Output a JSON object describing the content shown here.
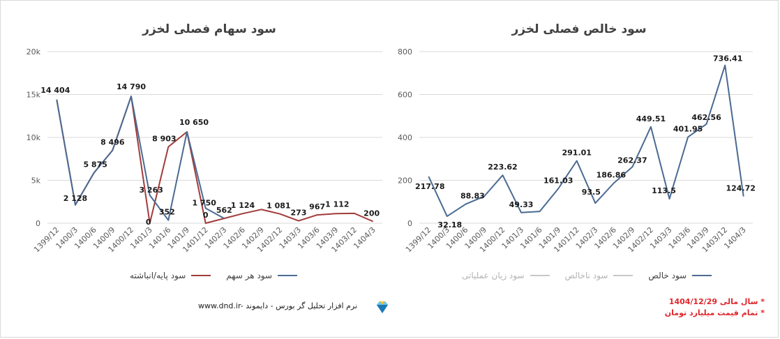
{
  "left_chart": {
    "title": "سود سهام فصلی لخزر",
    "legend": [
      {
        "label": "سود هر سهم",
        "color": "#4a6a92"
      },
      {
        "label": "سود پایه/انباشته",
        "color": "#a23b3b"
      }
    ]
  },
  "right_chart": {
    "title": "سود خالص فصلی لخزر",
    "legend": [
      {
        "label": "سود خالص",
        "color": "#4a6a92"
      },
      {
        "label": "سود ناخالص",
        "color": "#c7c7c7"
      },
      {
        "label": "سود زیان عملیاتی",
        "color": "#c7c7c7"
      }
    ]
  },
  "footer": {
    "text": "www.dnd.ir- نرم افزار تحلیل گر بورس - دایموند"
  },
  "notes": {
    "line1": "* سال مالی 1404/12/29",
    "line2": "* تمام قیمت میلیارد تومان"
  },
  "chart_data": [
    {
      "type": "line",
      "title": "سود سهام فصلی لخزر",
      "categories": [
        "1399/12",
        "1400/3",
        "1400/6",
        "1400/9",
        "1400/12",
        "1401/3",
        "1401/6",
        "1401/9",
        "1401/12",
        "1402/3",
        "1402/6",
        "1402/9",
        "1402/12",
        "1403/3",
        "1403/6",
        "1403/9",
        "1403/12",
        "1404/3"
      ],
      "ylim": [
        0,
        20000
      ],
      "yticks": [
        0,
        5000,
        10000,
        15000,
        20000
      ],
      "ytick_labels": [
        "0",
        "5k",
        "10k",
        "15k",
        "20k"
      ],
      "grid": true,
      "legend_position": "bottom",
      "series": [
        {
          "name": "سود هر سهم",
          "color": "#4a6a92",
          "values": [
            14404,
            2128,
            5875,
            8496,
            14790,
            3263,
            352,
            10650,
            1750,
            562,
            null,
            null,
            null,
            null,
            null,
            null,
            null,
            null
          ]
        },
        {
          "name": "سود پایه/انباشته",
          "color": "#a23b3b",
          "values": [
            14404,
            2128,
            5875,
            8496,
            14790,
            0,
            8903,
            10650,
            0,
            562,
            1124,
            1600,
            1081,
            273,
            967,
            1112,
            1150,
            200
          ]
        }
      ],
      "data_labels": [
        {
          "index": 0,
          "text": "14 404",
          "value": 14404
        },
        {
          "index": 1,
          "text": "2 128",
          "value": 2128
        },
        {
          "index": 2,
          "text": "5 875",
          "value": 5875
        },
        {
          "index": 3,
          "text": "8 496",
          "value": 8496
        },
        {
          "index": 4,
          "text": "14 790",
          "value": 14790
        },
        {
          "index": 5,
          "text": "3 263",
          "value": 3263
        },
        {
          "index": 5,
          "text": "0",
          "value": 0
        },
        {
          "index": 6,
          "text": "352",
          "value": 352
        },
        {
          "index": 6,
          "text": "8 903",
          "value": 8903
        },
        {
          "index": 7,
          "text": "10 650",
          "value": 10650
        },
        {
          "index": 8,
          "text": "1 750",
          "value": 1750
        },
        {
          "index": 8,
          "text": "0",
          "value": 0
        },
        {
          "index": 9,
          "text": "562",
          "value": 562
        },
        {
          "index": 10,
          "text": "1 124",
          "value": 1124
        },
        {
          "index": 12,
          "text": "1 081",
          "value": 1081
        },
        {
          "index": 13,
          "text": "273",
          "value": 273
        },
        {
          "index": 14,
          "text": "967",
          "value": 967
        },
        {
          "index": 15,
          "text": "1 112",
          "value": 1112
        },
        {
          "index": 17,
          "text": "200",
          "value": 200
        }
      ]
    },
    {
      "type": "line",
      "title": "سود خالص فصلی لخزر",
      "categories": [
        "1399/12",
        "1400/3",
        "1400/6",
        "1400/9",
        "1400/12",
        "1401/3",
        "1401/6",
        "1401/9",
        "1401/12",
        "1402/3",
        "1402/6",
        "1402/9",
        "1402/12",
        "1403/3",
        "1403/6",
        "1403/9",
        "1403/12",
        "1404/3"
      ],
      "ylim": [
        0,
        800
      ],
      "yticks": [
        0,
        200,
        400,
        600,
        800
      ],
      "ytick_labels": [
        "0",
        "200",
        "400",
        "600",
        "800"
      ],
      "grid": true,
      "legend_position": "bottom",
      "series": [
        {
          "name": "سود خالص",
          "color": "#4a6a92",
          "values": [
            217.78,
            32.18,
            88.83,
            125,
            223.62,
            49.33,
            55,
            161.03,
            291.01,
            93.5,
            186.86,
            262.37,
            449.51,
            113.5,
            401.95,
            462.56,
            736.41,
            124.72
          ]
        }
      ],
      "data_labels": [
        {
          "index": 0,
          "text": "217.78",
          "value": 217.78
        },
        {
          "index": 1,
          "text": "32.18",
          "value": 32.18
        },
        {
          "index": 2,
          "text": "88.83",
          "value": 88.83
        },
        {
          "index": 4,
          "text": "223.62",
          "value": 223.62
        },
        {
          "index": 5,
          "text": "49.33",
          "value": 49.33
        },
        {
          "index": 7,
          "text": "161.03",
          "value": 161.03
        },
        {
          "index": 8,
          "text": "291.01",
          "value": 291.01
        },
        {
          "index": 9,
          "text": "93.5",
          "value": 93.5
        },
        {
          "index": 10,
          "text": "186.86",
          "value": 186.86
        },
        {
          "index": 11,
          "text": "262.37",
          "value": 262.37
        },
        {
          "index": 12,
          "text": "449.51",
          "value": 449.51
        },
        {
          "index": 13,
          "text": "113.5",
          "value": 113.5
        },
        {
          "index": 14,
          "text": "401.95",
          "value": 401.95
        },
        {
          "index": 15,
          "text": "462.56",
          "value": 462.56
        },
        {
          "index": 16,
          "text": "736.41",
          "value": 736.41
        },
        {
          "index": 17,
          "text": "124.72",
          "value": 124.72
        }
      ]
    }
  ]
}
